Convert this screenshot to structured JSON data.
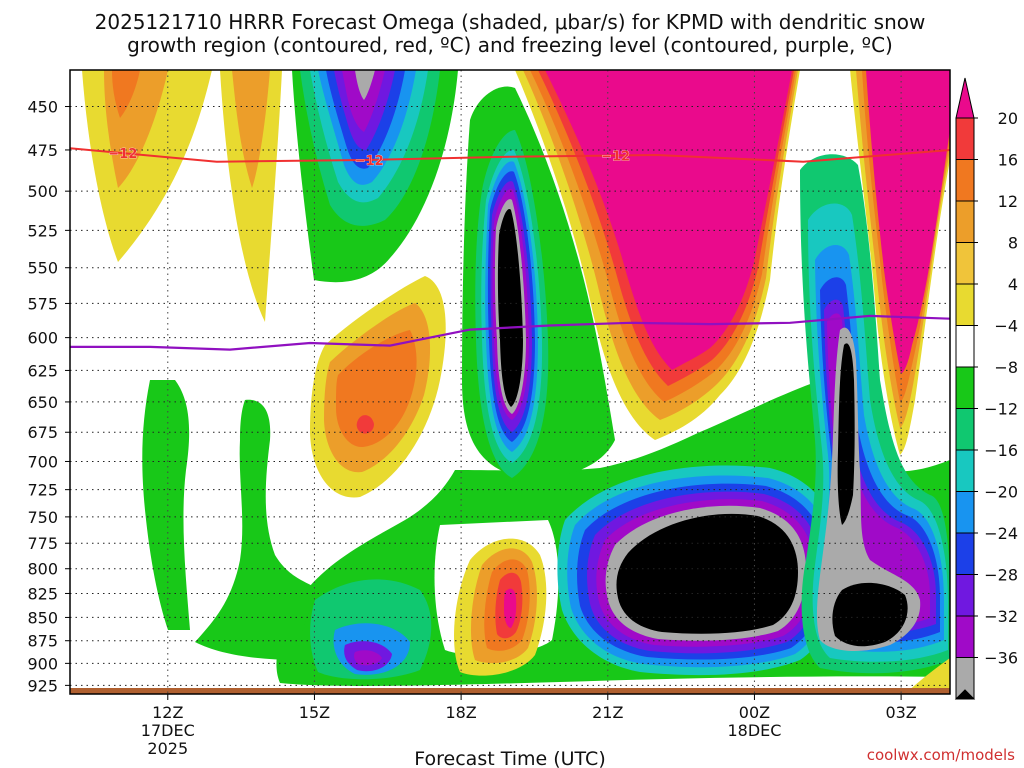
{
  "chart_data": {
    "type": "contour",
    "title_lines": [
      "2025121710 HRRR Forecast Omega (shaded, μbar/s) for KPMD with dendritic snow",
      "growth region (contoured, red, ºC) and freezing level (contoured, purple, ºC)"
    ],
    "xlabel": "Forecast Time (UTC)",
    "x_ticks": [
      {
        "hour": 12,
        "label": "12Z",
        "sub": [
          "17DEC",
          "2025"
        ]
      },
      {
        "hour": 15,
        "label": "15Z",
        "sub": []
      },
      {
        "hour": 18,
        "label": "18Z",
        "sub": []
      },
      {
        "hour": 21,
        "label": "21Z",
        "sub": []
      },
      {
        "hour": 24,
        "label": "00Z",
        "sub": [
          "18DEC"
        ]
      },
      {
        "hour": 27,
        "label": "03Z",
        "sub": []
      }
    ],
    "x_range_hours": [
      10.0,
      28.0
    ],
    "y_ticks": [
      "450",
      "475",
      "500",
      "525",
      "550",
      "575",
      "600",
      "625",
      "650",
      "675",
      "700",
      "725",
      "750",
      "775",
      "800",
      "825",
      "850",
      "875",
      "900",
      "925"
    ],
    "y_range_hPa": [
      430,
      935
    ],
    "colorbar": {
      "labels": [
        "20",
        "16",
        "12",
        "8",
        "4",
        "−4",
        "−8",
        "−12",
        "−16",
        "−20",
        "−24",
        "−28",
        "−32",
        "−36"
      ],
      "colors": [
        "#ea0a8c",
        "#f13a3a",
        "#f07820",
        "#ec9e2a",
        "#f0c43a",
        "#e8da30",
        "#ffffff",
        "#18c818",
        "#10c870",
        "#18c8c0",
        "#1894f0",
        "#1c40e8",
        "#7018e0",
        "#a00ac8",
        "#aaaaaa",
        "#000000"
      ]
    },
    "dgz_contour": {
      "label": "−12",
      "pressures": [
        474,
        482,
        481,
        479,
        478,
        482,
        475
      ]
    },
    "freezing_level": {
      "pressures": [
        607,
        607,
        609,
        604,
        606,
        594,
        591,
        589,
        590,
        589,
        584,
        586
      ]
    },
    "credit": "coolwx.com/models"
  }
}
